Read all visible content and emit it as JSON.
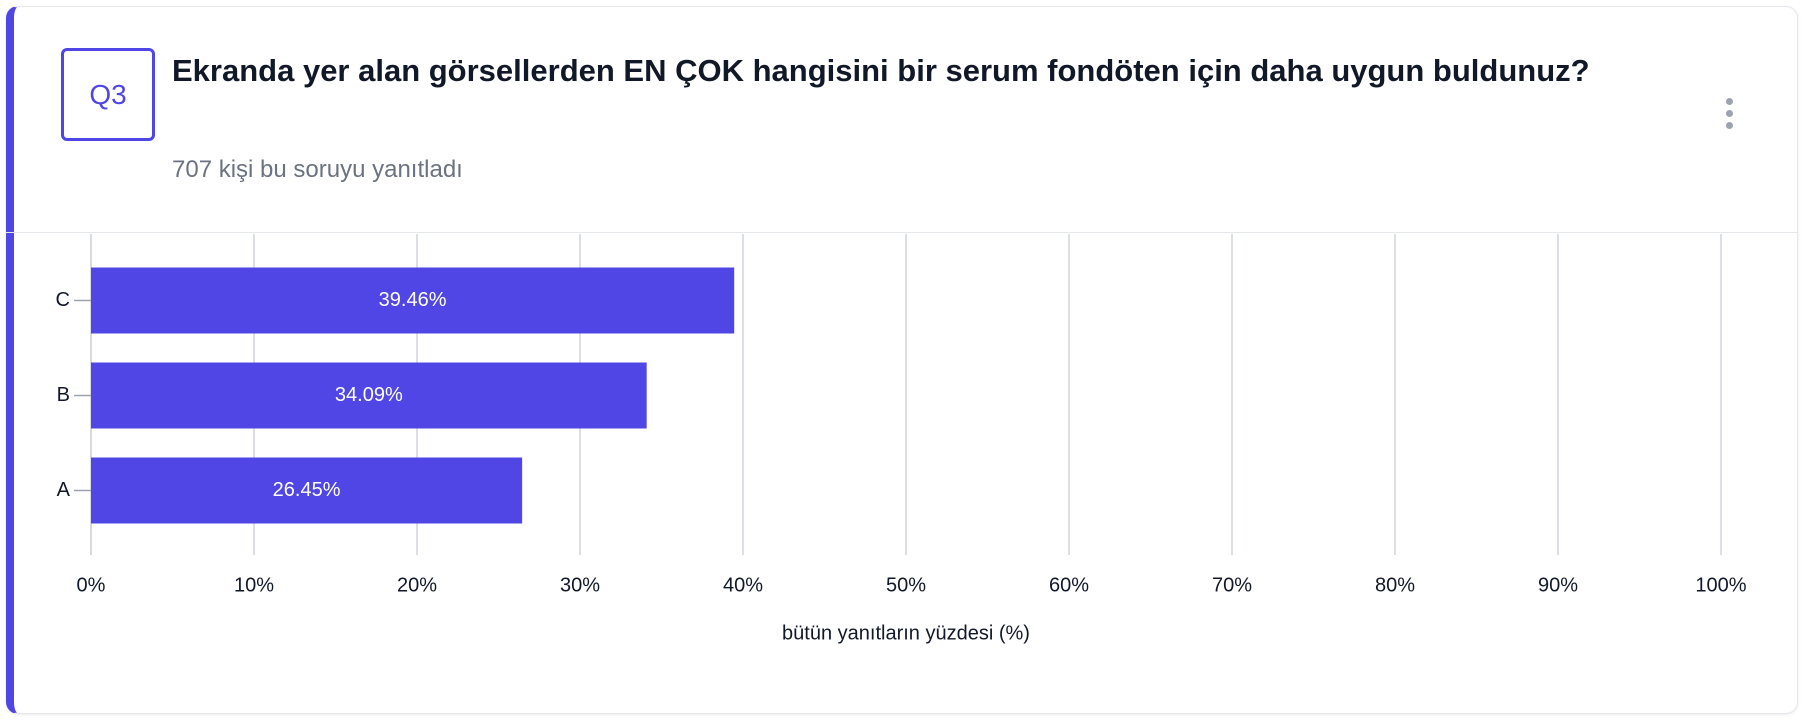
{
  "header": {
    "badge": "Q3",
    "title": "Ekranda yer alan görsellerden EN ÇOK hangisini bir serum fondöten için daha uygun buldunuz?",
    "subtitle": "707 kişi bu soruyu yanıtladı"
  },
  "chart_data": {
    "type": "bar",
    "orientation": "horizontal",
    "categories": [
      "C",
      "B",
      "A"
    ],
    "values": [
      39.46,
      34.09,
      26.45
    ],
    "value_labels": [
      "39.46%",
      "34.09%",
      "26.45%"
    ],
    "color": "#4f46e5",
    "xlim": [
      0,
      100
    ],
    "xticks": [
      {
        "value": 0,
        "label": "0%"
      },
      {
        "value": 10,
        "label": "10%"
      },
      {
        "value": 20,
        "label": "20%"
      },
      {
        "value": 30,
        "label": "30%"
      },
      {
        "value": 40,
        "label": "40%"
      },
      {
        "value": 50,
        "label": "50%"
      },
      {
        "value": 60,
        "label": "60%"
      },
      {
        "value": 70,
        "label": "70%"
      },
      {
        "value": 80,
        "label": "80%"
      },
      {
        "value": 90,
        "label": "90%"
      },
      {
        "value": 100,
        "label": "100%"
      }
    ],
    "x_label": "bütün yanıtların yüzdesi (%)",
    "grid": true
  }
}
